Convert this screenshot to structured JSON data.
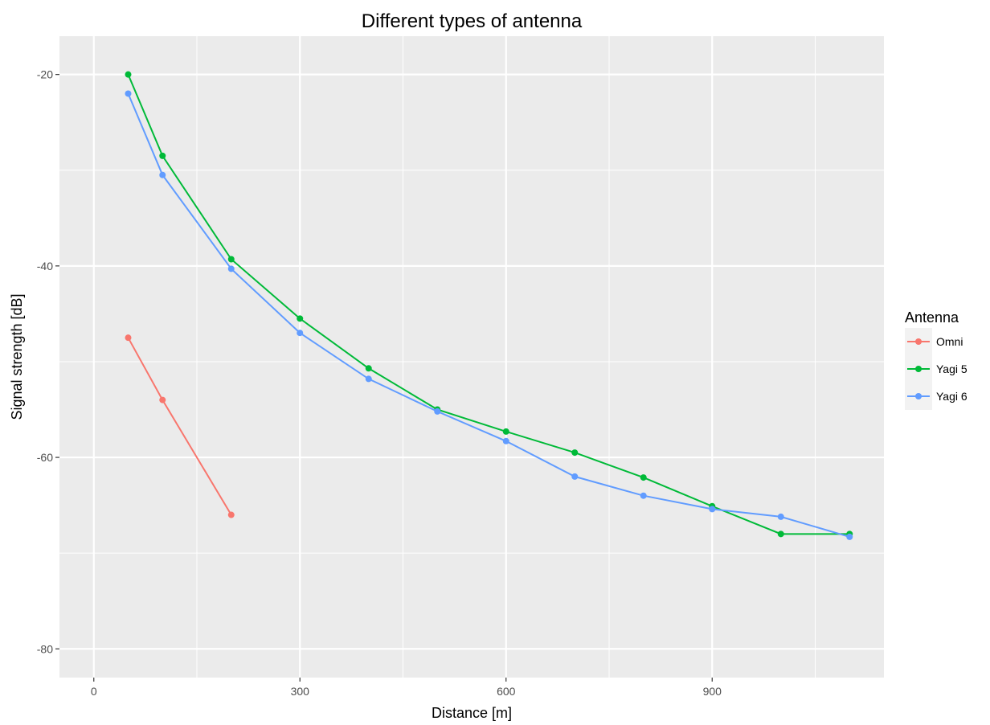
{
  "chart_data": {
    "type": "line",
    "title": "Different types of antenna",
    "xlabel": "Distance [m]",
    "ylabel": "Signal strength [dB]",
    "xlim": [
      -50,
      1150
    ],
    "ylim": [
      -83,
      -16
    ],
    "x_ticks": [
      0,
      300,
      600,
      900
    ],
    "y_ticks": [
      -80,
      -60,
      -40,
      -20
    ],
    "grid": true,
    "legend": {
      "title": "Antenna",
      "position": "right"
    },
    "series": [
      {
        "name": "Omni",
        "color": "#F8766D",
        "x": [
          50,
          100,
          200
        ],
        "y": [
          -47.5,
          -54,
          -66
        ]
      },
      {
        "name": "Yagi 5",
        "color": "#00BA38",
        "x": [
          50,
          100,
          200,
          300,
          400,
          500,
          600,
          700,
          800,
          900,
          1000,
          1100
        ],
        "y": [
          -20,
          -28.5,
          -39.3,
          -45.5,
          -50.7,
          -55,
          -57.3,
          -59.5,
          -62.1,
          -65.1,
          -68,
          -68
        ]
      },
      {
        "name": "Yagi 6",
        "color": "#619CFF",
        "x": [
          50,
          100,
          200,
          300,
          400,
          500,
          600,
          700,
          800,
          900,
          1000,
          1100
        ],
        "y": [
          -22,
          -30.5,
          -40.3,
          -47,
          -51.8,
          -55.2,
          -58.3,
          -62,
          -64,
          -65.4,
          -66.2,
          -68.3
        ]
      }
    ]
  }
}
